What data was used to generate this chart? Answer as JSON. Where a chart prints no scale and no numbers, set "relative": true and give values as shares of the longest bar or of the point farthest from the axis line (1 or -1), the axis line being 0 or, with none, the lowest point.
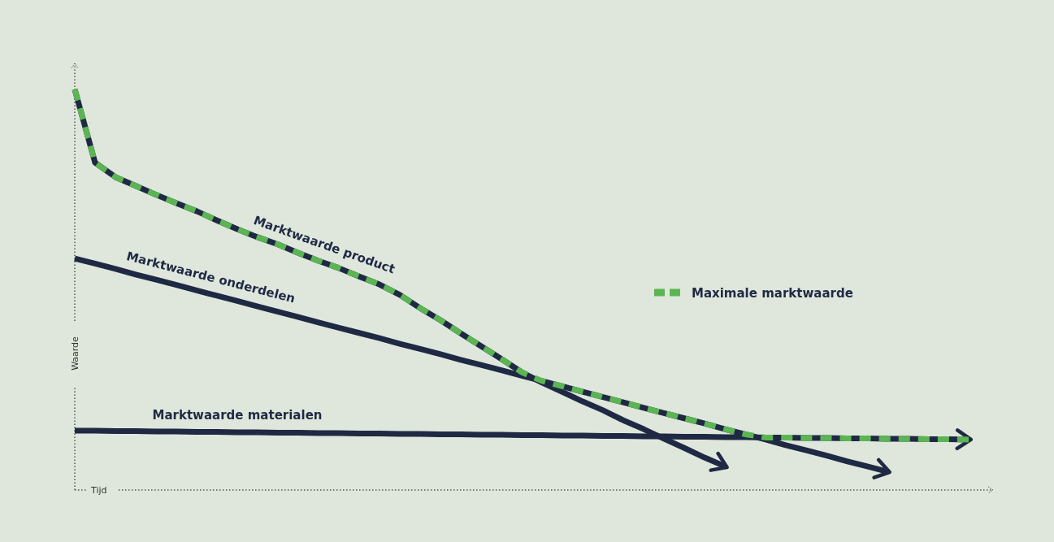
{
  "chart_data": {
    "type": "line",
    "relative": true,
    "xlabel": "Tijd",
    "ylabel": "Waarde",
    "legend": "right",
    "categories": [
      null,
      null,
      null,
      null,
      null,
      null,
      null,
      null,
      null,
      null,
      null,
      null,
      null,
      null,
      null,
      null,
      null,
      null,
      null,
      null,
      null,
      null,
      null,
      null,
      null,
      null,
      null,
      null,
      null,
      null,
      null,
      null,
      null,
      null,
      null,
      null,
      null,
      null,
      null,
      null,
      null,
      null,
      null,
      null,
      null
    ],
    "series": [
      {
        "name": "Marktwaarde product",
        "color": "#1f2944",
        "values": [
          1.0,
          0.817,
          0.781,
          0.759,
          0.737,
          0.716,
          0.696,
          0.673,
          0.651,
          0.631,
          0.613,
          0.592,
          0.572,
          0.554,
          0.533,
          0.513,
          0.487,
          0.454,
          0.424,
          0.391,
          0.359,
          0.327,
          0.294,
          0.268,
          0.245,
          0.221,
          0.199,
          0.174,
          0.152,
          0.128,
          0.105,
          0.081,
          0.059,
          null,
          null,
          null,
          null,
          null,
          null,
          null,
          null,
          null,
          null,
          null,
          null
        ]
      },
      {
        "name": "Marktwaarde onderdelen",
        "color": "#1f2944",
        "values": [
          0.578,
          0.565,
          0.552,
          0.538,
          0.525,
          0.512,
          0.498,
          0.485,
          0.472,
          0.458,
          0.445,
          0.432,
          0.418,
          0.405,
          0.392,
          0.379,
          0.365,
          0.352,
          0.339,
          0.325,
          0.312,
          0.299,
          0.285,
          0.272,
          0.259,
          0.245,
          0.232,
          0.219,
          0.205,
          0.192,
          0.179,
          0.166,
          0.152,
          0.139,
          0.126,
          0.112,
          0.099,
          0.086,
          0.072,
          0.059,
          0.046,
          null,
          null,
          null,
          null
        ]
      },
      {
        "name": "Marktwaarde materialen",
        "color": "#1f2944",
        "values": [
          0.148,
          0.148,
          0.147,
          0.147,
          0.146,
          0.146,
          0.145,
          0.145,
          0.144,
          0.144,
          0.143,
          0.143,
          0.142,
          0.142,
          0.141,
          0.141,
          0.14,
          0.14,
          0.139,
          0.139,
          0.138,
          0.138,
          0.137,
          0.137,
          0.136,
          0.136,
          0.135,
          0.135,
          0.134,
          0.134,
          0.133,
          0.133,
          0.132,
          0.132,
          0.131,
          0.131,
          0.13,
          0.13,
          0.129,
          0.129,
          0.128,
          0.128,
          0.127,
          0.127,
          0.126
        ]
      },
      {
        "name": "Maximale marktwaarde",
        "color": "#5cb553",
        "line_style": "dashed",
        "values": [
          1.0,
          0.817,
          0.781,
          0.759,
          0.737,
          0.716,
          0.696,
          0.673,
          0.651,
          0.631,
          0.613,
          0.592,
          0.572,
          0.554,
          0.533,
          0.513,
          0.487,
          0.454,
          0.424,
          0.391,
          0.359,
          0.327,
          0.294,
          0.272,
          0.259,
          0.245,
          0.232,
          0.219,
          0.205,
          0.192,
          0.179,
          0.166,
          0.152,
          0.139,
          0.131,
          0.131,
          0.13,
          0.13,
          0.129,
          0.129,
          0.128,
          0.128,
          0.127,
          0.127,
          0.126
        ]
      }
    ]
  }
}
